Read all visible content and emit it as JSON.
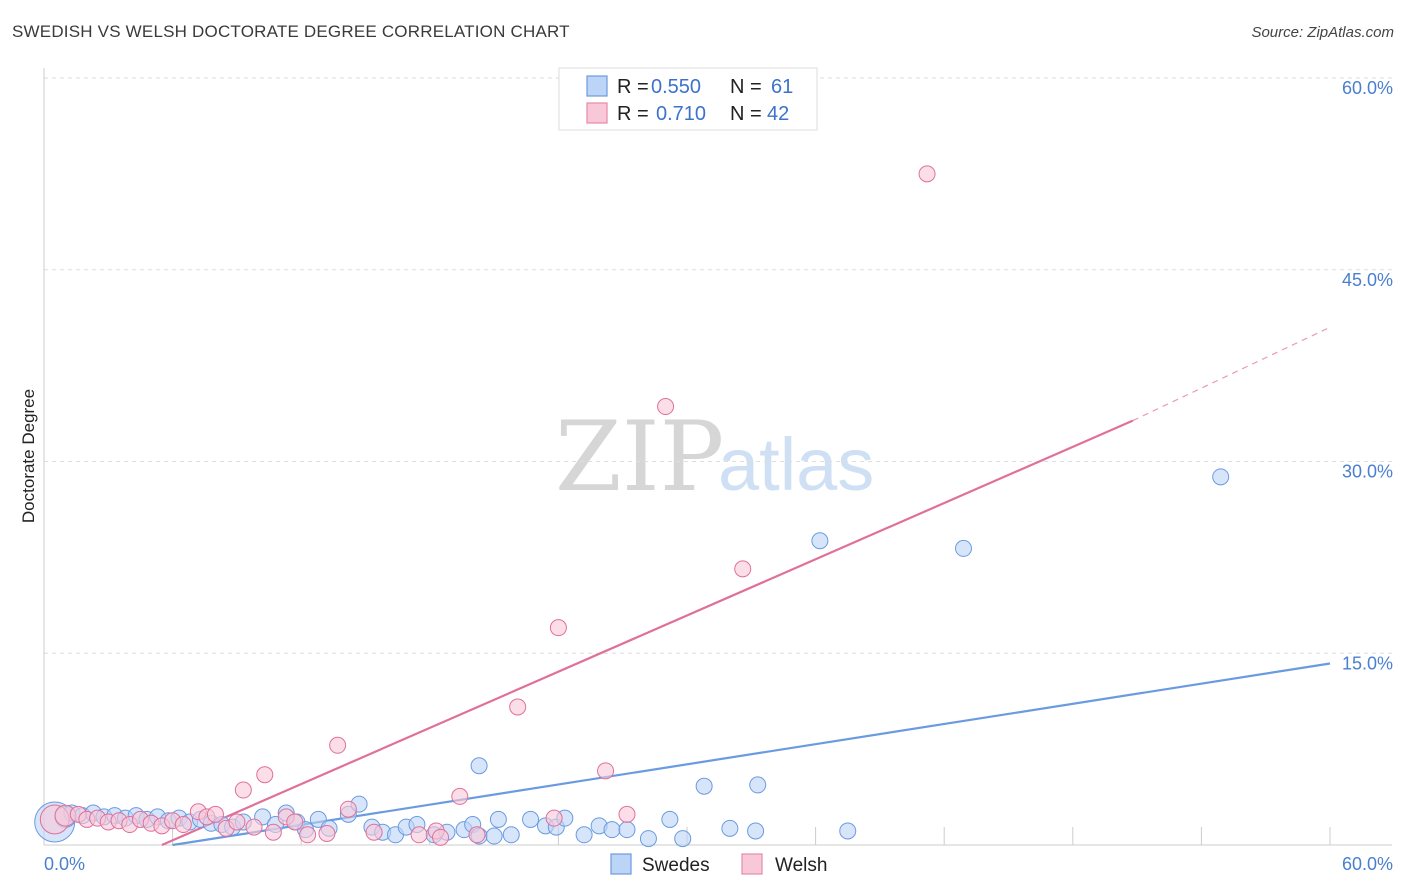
{
  "header": {
    "title": "SWEDISH VS WELSH DOCTORATE DEGREE CORRELATION CHART",
    "source": "Source: ZipAtlas.com"
  },
  "watermark": {
    "zip": "ZIP",
    "atlas": "atlas"
  },
  "legend": {
    "rows": [
      {
        "series": "Swedes",
        "r_label": "R =",
        "r_value": "0.550",
        "n_label": "N =",
        "n_value": "61",
        "fill": "#bcd4f6",
        "stroke": "#6a9be0"
      },
      {
        "series": "Welsh",
        "r_label": "R =",
        "r_value": "0.710",
        "n_label": "N =",
        "n_value": "42",
        "fill": "#f8c8d8",
        "stroke": "#e58aa8"
      }
    ]
  },
  "bottom_legend": {
    "items": [
      "Swedes",
      "Welsh"
    ]
  },
  "chart_data": {
    "type": "scatter",
    "title": "SWEDISH VS WELSH DOCTORATE DEGREE CORRELATION CHART",
    "xlabel": "",
    "ylabel": "Doctorate Degree",
    "xlim": [
      0,
      60
    ],
    "ylim": [
      0,
      60
    ],
    "x_tick_labels": [
      "0.0%",
      "60.0%"
    ],
    "y_ticks": [
      15,
      30,
      45,
      60
    ],
    "y_tick_labels": [
      "15.0%",
      "30.0%",
      "45.0%",
      "60.0%"
    ],
    "grid": true,
    "legend_position": "top-center",
    "series": [
      {
        "name": "Swedes",
        "color": "#6a9be0",
        "fill": "#bcd4f6",
        "trendline": {
          "x": [
            6,
            60
          ],
          "y": [
            0.0,
            14.2
          ]
        },
        "points": [
          {
            "x": 0.5,
            "y": 1.8,
            "s": 2.5
          },
          {
            "x": 1.0,
            "y": 2.2,
            "s": 1.3
          },
          {
            "x": 1.3,
            "y": 2.5,
            "s": 1
          },
          {
            "x": 1.8,
            "y": 2.3,
            "s": 1
          },
          {
            "x": 2.3,
            "y": 2.5,
            "s": 1
          },
          {
            "x": 2.8,
            "y": 2.2,
            "s": 1
          },
          {
            "x": 3.3,
            "y": 2.3,
            "s": 1
          },
          {
            "x": 3.8,
            "y": 2.1,
            "s": 1
          },
          {
            "x": 4.3,
            "y": 2.3,
            "s": 1
          },
          {
            "x": 4.8,
            "y": 2.0,
            "s": 1
          },
          {
            "x": 5.3,
            "y": 2.2,
            "s": 1
          },
          {
            "x": 5.8,
            "y": 1.9,
            "s": 1
          },
          {
            "x": 6.3,
            "y": 2.1,
            "s": 1
          },
          {
            "x": 6.8,
            "y": 1.8,
            "s": 1
          },
          {
            "x": 7.3,
            "y": 2.0,
            "s": 1
          },
          {
            "x": 7.8,
            "y": 1.7,
            "s": 1
          },
          {
            "x": 8.3,
            "y": 1.6,
            "s": 1
          },
          {
            "x": 8.8,
            "y": 1.4,
            "s": 1
          },
          {
            "x": 9.3,
            "y": 1.8,
            "s": 1
          },
          {
            "x": 10.2,
            "y": 2.2,
            "s": 1
          },
          {
            "x": 10.8,
            "y": 1.6,
            "s": 1
          },
          {
            "x": 11.3,
            "y": 2.5,
            "s": 1
          },
          {
            "x": 11.8,
            "y": 1.8,
            "s": 1
          },
          {
            "x": 12.2,
            "y": 1.2,
            "s": 1
          },
          {
            "x": 12.8,
            "y": 2.0,
            "s": 1
          },
          {
            "x": 13.3,
            "y": 1.3,
            "s": 1
          },
          {
            "x": 14.2,
            "y": 2.4,
            "s": 1
          },
          {
            "x": 14.7,
            "y": 3.2,
            "s": 1
          },
          {
            "x": 15.3,
            "y": 1.4,
            "s": 1
          },
          {
            "x": 15.8,
            "y": 1.0,
            "s": 1
          },
          {
            "x": 16.4,
            "y": 0.8,
            "s": 1
          },
          {
            "x": 16.9,
            "y": 1.4,
            "s": 1
          },
          {
            "x": 17.4,
            "y": 1.6,
            "s": 1
          },
          {
            "x": 18.2,
            "y": 0.8,
            "s": 1
          },
          {
            "x": 18.8,
            "y": 1.0,
            "s": 1
          },
          {
            "x": 19.6,
            "y": 1.2,
            "s": 1
          },
          {
            "x": 20.0,
            "y": 1.6,
            "s": 1
          },
          {
            "x": 20.3,
            "y": 0.7,
            "s": 1
          },
          {
            "x": 21.0,
            "y": 0.7,
            "s": 1
          },
          {
            "x": 21.2,
            "y": 2.0,
            "s": 1
          },
          {
            "x": 21.8,
            "y": 0.8,
            "s": 1
          },
          {
            "x": 22.7,
            "y": 2.0,
            "s": 1
          },
          {
            "x": 23.4,
            "y": 1.5,
            "s": 1
          },
          {
            "x": 23.9,
            "y": 1.4,
            "s": 1
          },
          {
            "x": 24.3,
            "y": 2.1,
            "s": 1
          },
          {
            "x": 25.2,
            "y": 0.8,
            "s": 1
          },
          {
            "x": 25.9,
            "y": 1.5,
            "s": 1
          },
          {
            "x": 26.5,
            "y": 1.2,
            "s": 1
          },
          {
            "x": 27.2,
            "y": 1.2,
            "s": 1
          },
          {
            "x": 28.2,
            "y": 0.5,
            "s": 1
          },
          {
            "x": 29.2,
            "y": 2.0,
            "s": 1
          },
          {
            "x": 29.8,
            "y": 0.5,
            "s": 1
          },
          {
            "x": 20.3,
            "y": 6.2,
            "s": 1
          },
          {
            "x": 30.8,
            "y": 4.6,
            "s": 1
          },
          {
            "x": 32.0,
            "y": 1.3,
            "s": 1
          },
          {
            "x": 33.2,
            "y": 1.1,
            "s": 1
          },
          {
            "x": 33.3,
            "y": 4.7,
            "s": 1
          },
          {
            "x": 36.2,
            "y": 23.8,
            "s": 1
          },
          {
            "x": 37.5,
            "y": 1.1,
            "s": 1
          },
          {
            "x": 42.9,
            "y": 23.2,
            "s": 1
          },
          {
            "x": 54.9,
            "y": 28.8,
            "s": 1
          }
        ]
      },
      {
        "name": "Welsh",
        "color": "#e0709a",
        "fill": "#f8c8d8",
        "trendline": {
          "x": [
            5.5,
            50.8
          ],
          "y": [
            0.0,
            33.2
          ]
        },
        "trendline_dashed": {
          "x": [
            50.8,
            60
          ],
          "y": [
            33.2,
            40.5
          ]
        },
        "points": [
          {
            "x": 0.5,
            "y": 2.0,
            "s": 1.8
          },
          {
            "x": 1.0,
            "y": 2.3,
            "s": 1.3
          },
          {
            "x": 1.6,
            "y": 2.4,
            "s": 1
          },
          {
            "x": 2.0,
            "y": 2.0,
            "s": 1
          },
          {
            "x": 2.5,
            "y": 2.1,
            "s": 1
          },
          {
            "x": 3.0,
            "y": 1.8,
            "s": 1
          },
          {
            "x": 3.5,
            "y": 1.9,
            "s": 1
          },
          {
            "x": 4.0,
            "y": 1.6,
            "s": 1
          },
          {
            "x": 4.5,
            "y": 2.0,
            "s": 1
          },
          {
            "x": 5.0,
            "y": 1.7,
            "s": 1
          },
          {
            "x": 5.5,
            "y": 1.5,
            "s": 1
          },
          {
            "x": 6.0,
            "y": 1.9,
            "s": 1
          },
          {
            "x": 6.5,
            "y": 1.6,
            "s": 1
          },
          {
            "x": 7.2,
            "y": 2.6,
            "s": 1
          },
          {
            "x": 7.6,
            "y": 2.2,
            "s": 1
          },
          {
            "x": 8.0,
            "y": 2.4,
            "s": 1
          },
          {
            "x": 8.5,
            "y": 1.3,
            "s": 1
          },
          {
            "x": 9.0,
            "y": 1.8,
            "s": 1
          },
          {
            "x": 9.3,
            "y": 4.3,
            "s": 1
          },
          {
            "x": 9.8,
            "y": 1.4,
            "s": 1
          },
          {
            "x": 10.3,
            "y": 5.5,
            "s": 1
          },
          {
            "x": 10.7,
            "y": 1.0,
            "s": 1
          },
          {
            "x": 11.3,
            "y": 2.2,
            "s": 1
          },
          {
            "x": 11.7,
            "y": 1.8,
            "s": 1
          },
          {
            "x": 12.3,
            "y": 0.8,
            "s": 1
          },
          {
            "x": 13.2,
            "y": 0.9,
            "s": 1
          },
          {
            "x": 13.7,
            "y": 7.8,
            "s": 1
          },
          {
            "x": 14.2,
            "y": 2.8,
            "s": 1
          },
          {
            "x": 15.4,
            "y": 1.0,
            "s": 1
          },
          {
            "x": 17.5,
            "y": 0.8,
            "s": 1
          },
          {
            "x": 18.3,
            "y": 1.1,
            "s": 1
          },
          {
            "x": 18.5,
            "y": 0.6,
            "s": 1
          },
          {
            "x": 19.4,
            "y": 3.8,
            "s": 1
          },
          {
            "x": 20.2,
            "y": 0.8,
            "s": 1
          },
          {
            "x": 22.1,
            "y": 10.8,
            "s": 1
          },
          {
            "x": 23.8,
            "y": 2.1,
            "s": 1
          },
          {
            "x": 24.0,
            "y": 17.0,
            "s": 1
          },
          {
            "x": 26.2,
            "y": 5.8,
            "s": 1
          },
          {
            "x": 27.2,
            "y": 2.4,
            "s": 1
          },
          {
            "x": 29.0,
            "y": 34.3,
            "s": 1
          },
          {
            "x": 32.6,
            "y": 21.6,
            "s": 1
          },
          {
            "x": 41.2,
            "y": 52.5,
            "s": 1
          }
        ]
      }
    ]
  }
}
